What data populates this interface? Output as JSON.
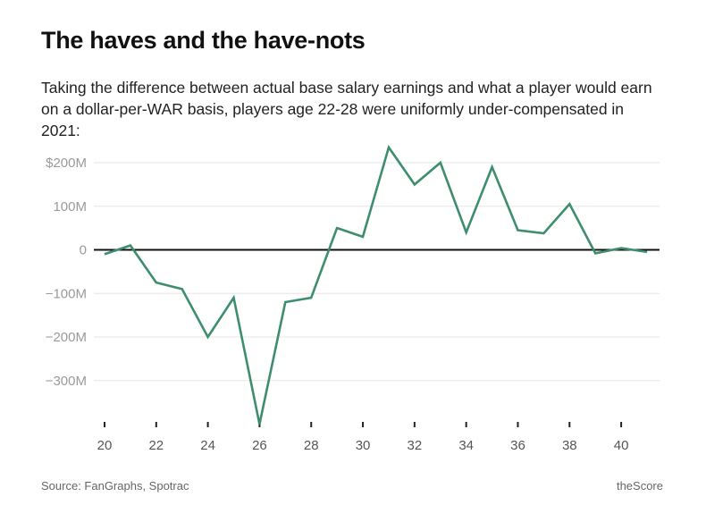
{
  "header": {
    "title": "The haves and the have-nots",
    "subtitle": "Taking the difference between actual base salary earnings and what a player would earn on a dollar-per-WAR basis, players age 22-28 were uniformly under-compensated in 2021:"
  },
  "footer": {
    "source": "Source: FanGraphs, Spotrac",
    "brand": "theScore"
  },
  "colors": {
    "line": "#3e8e6e",
    "zero_line": "#111111",
    "grid": "#e6e6e6"
  },
  "chart_data": {
    "type": "line",
    "title": "The haves and the have-nots",
    "xlabel": "",
    "ylabel": "",
    "xlim": [
      20,
      41
    ],
    "ylim": [
      -400,
      240
    ],
    "grid": true,
    "yticks": [
      {
        "value": 200,
        "label": "$200M"
      },
      {
        "value": 100,
        "label": "100M"
      },
      {
        "value": 0,
        "label": "0"
      },
      {
        "value": -100,
        "label": "−100M"
      },
      {
        "value": -200,
        "label": "−200M"
      },
      {
        "value": -300,
        "label": "−300M"
      }
    ],
    "xticks": [
      {
        "value": 20,
        "label": "20"
      },
      {
        "value": 22,
        "label": "22"
      },
      {
        "value": 24,
        "label": "24"
      },
      {
        "value": 26,
        "label": "26"
      },
      {
        "value": 28,
        "label": "28"
      },
      {
        "value": 30,
        "label": "30"
      },
      {
        "value": 32,
        "label": "32"
      },
      {
        "value": 34,
        "label": "34"
      },
      {
        "value": 36,
        "label": "36"
      },
      {
        "value": 38,
        "label": "38"
      },
      {
        "value": 40,
        "label": "40"
      }
    ],
    "series": [
      {
        "x": [
          20,
          21,
          22,
          23,
          24,
          25,
          26,
          27,
          28,
          29,
          30,
          31,
          32,
          33,
          34,
          35,
          36,
          37,
          38,
          39,
          40,
          41
        ],
        "values": [
          -10,
          10,
          -75,
          -90,
          -200,
          -110,
          -400,
          -120,
          -110,
          50,
          30,
          235,
          150,
          200,
          40,
          190,
          45,
          38,
          105,
          -8,
          4,
          -5
        ]
      }
    ]
  }
}
